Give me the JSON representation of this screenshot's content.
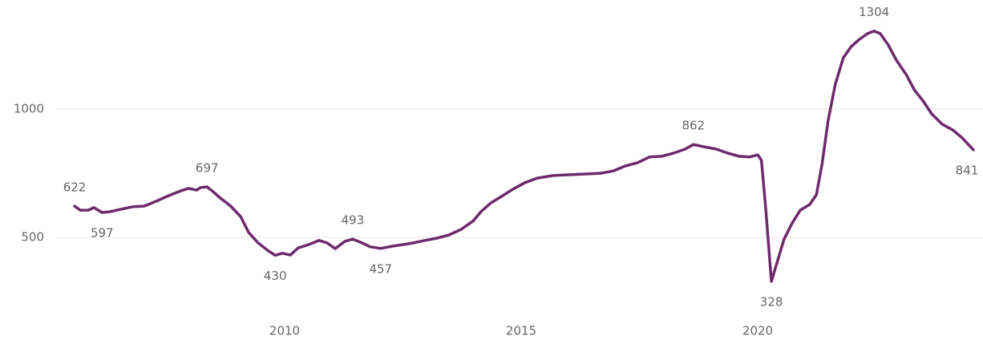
{
  "chart_data": {
    "type": "line",
    "x": [
      2005.56,
      2005.68,
      2005.85,
      2005.97,
      2006.14,
      2006.31,
      2006.53,
      2006.78,
      2007.03,
      2007.29,
      2007.54,
      2007.8,
      2007.97,
      2008.14,
      2008.22,
      2008.36,
      2008.47,
      2008.64,
      2008.86,
      2009.07,
      2009.24,
      2009.44,
      2009.66,
      2009.8,
      2009.95,
      2010.12,
      2010.29,
      2010.51,
      2010.73,
      2010.9,
      2011.07,
      2011.27,
      2011.44,
      2011.64,
      2011.81,
      2012.03,
      2012.29,
      2012.51,
      2012.71,
      2012.97,
      2013.22,
      2013.47,
      2013.73,
      2013.98,
      2014.15,
      2014.36,
      2014.58,
      2014.83,
      2015.08,
      2015.34,
      2015.68,
      2016.02,
      2016.36,
      2016.69,
      2016.95,
      2017.2,
      2017.46,
      2017.71,
      2017.97,
      2018.22,
      2018.47,
      2018.64,
      2018.86,
      2019.12,
      2019.37,
      2019.61,
      2019.83,
      2020.0,
      2020.08,
      2020.17,
      2020.29,
      2020.42,
      2020.56,
      2020.73,
      2020.9,
      2021.1,
      2021.24,
      2021.36,
      2021.49,
      2021.64,
      2021.81,
      2021.98,
      2022.15,
      2022.32,
      2022.46,
      2022.59,
      2022.76,
      2022.93,
      2023.14,
      2023.31,
      2023.51,
      2023.68,
      2023.9,
      2024.12,
      2024.32,
      2024.56
    ],
    "series": [
      {
        "color": "#6e2a6c",
        "values": [
          622,
          606,
          606,
          616,
          597,
          600,
          609,
          619,
          622,
          641,
          662,
          681,
          691,
          684,
          694,
          697,
          681,
          653,
          622,
          581,
          519,
          478,
          447,
          430,
          438,
          431,
          459,
          472,
          488,
          478,
          456,
          484,
          493,
          478,
          463,
          457,
          466,
          472,
          478,
          488,
          497,
          509,
          531,
          563,
          600,
          634,
          659,
          688,
          713,
          731,
          741,
          744,
          747,
          750,
          759,
          778,
          791,
          813,
          816,
          828,
          844,
          862,
          853,
          844,
          828,
          816,
          813,
          822,
          800,
          613,
          328,
          409,
          494,
          556,
          606,
          628,
          666,
          784,
          956,
          1097,
          1200,
          1244,
          1272,
          1294,
          1304,
          1294,
          1250,
          1191,
          1134,
          1075,
          1028,
          981,
          941,
          919,
          888,
          841
        ],
        "value_labels": [
          "622",
          null,
          null,
          null,
          "597",
          null,
          null,
          null,
          null,
          null,
          null,
          null,
          null,
          null,
          null,
          "697",
          null,
          null,
          null,
          null,
          null,
          null,
          null,
          "430",
          null,
          null,
          null,
          null,
          null,
          null,
          null,
          null,
          "493",
          null,
          null,
          "457",
          null,
          null,
          null,
          null,
          null,
          null,
          null,
          null,
          null,
          null,
          null,
          null,
          null,
          null,
          null,
          null,
          null,
          null,
          null,
          null,
          null,
          null,
          null,
          null,
          null,
          "862",
          null,
          null,
          null,
          null,
          null,
          null,
          null,
          null,
          "328",
          null,
          null,
          null,
          null,
          null,
          null,
          null,
          null,
          null,
          null,
          null,
          null,
          null,
          "1304",
          null,
          null,
          null,
          null,
          null,
          null,
          null,
          null,
          null,
          null,
          "841"
        ]
      }
    ],
    "xlim": [
      2005.5,
      2024.6
    ],
    "xticks": [
      2010,
      2015,
      2020
    ],
    "ylim": [
      300,
      1400
    ],
    "yticks": [
      500,
      1000
    ],
    "grid": true
  }
}
